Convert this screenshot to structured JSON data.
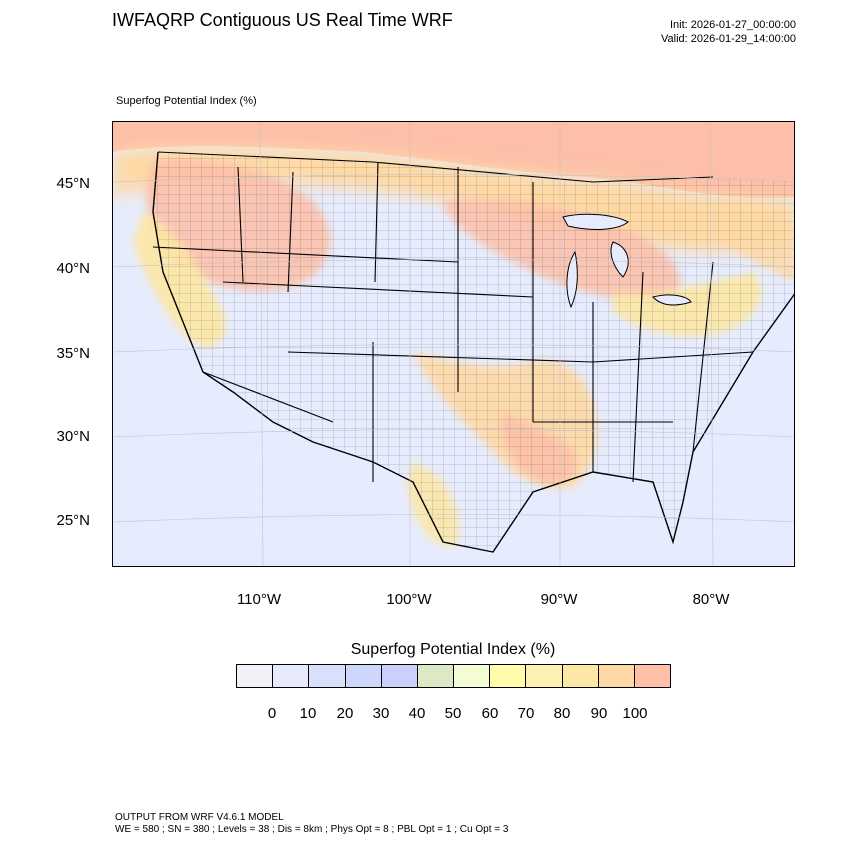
{
  "header": {
    "title": "IWFAQRP Contiguous US Real Time WRF",
    "init": "Init: 2026-01-27_00:00:00",
    "valid": "Valid: 2026-01-29_14:00:00"
  },
  "map": {
    "field_label": "Superfog Potential Index   (%)",
    "lat_labels": [
      "45°N",
      "40°N",
      "35°N",
      "30°N",
      "25°N"
    ],
    "lon_labels": [
      "110°W",
      "100°W",
      "90°W",
      "80°W"
    ],
    "background_color": "#e6ecfd",
    "high_color": "#fdbfa8"
  },
  "colorbar": {
    "title": "Superfog Potential Index  (%)",
    "colors": [
      "#f0f2f8",
      "#e7ebfc",
      "#d9e0fb",
      "#cdd7fb",
      "#c9d0fa",
      "#dde8c4",
      "#f3fcd2",
      "#fffdac",
      "#fef0b3",
      "#fde7a4",
      "#fed9a6",
      "#fdbfa8"
    ],
    "labels": [
      "0",
      "10",
      "20",
      "30",
      "40",
      "50",
      "60",
      "70",
      "80",
      "90",
      "100"
    ]
  },
  "footer": {
    "line1": "OUTPUT FROM WRF V4.6.1 MODEL",
    "line2": "WE = 580 ; SN = 380 ; Levels = 38 ; Dis = 8km ; Phys Opt = 8 ; PBL Opt = 1 ; Cu Opt = 3"
  }
}
